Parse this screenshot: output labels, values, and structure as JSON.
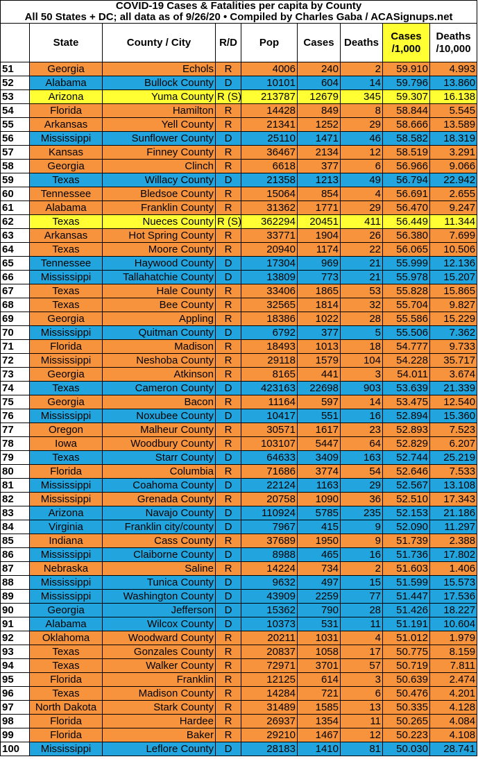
{
  "header": {
    "title": "COVID-19 Cases & Fatalities per capita by County",
    "subtitle": "All 50 States + DC; all data as of 9/26/20  • Compiled by Charles Gaba / ACASignups.net"
  },
  "table": {
    "columns": [
      "State",
      "County / City",
      "R/D",
      "Pop",
      "Cases",
      "Deaths",
      "Cases /1,000",
      "Deaths /10,000"
    ],
    "rows": [
      [
        "51",
        "Georgia",
        "Echols",
        "R",
        "4006",
        "240",
        "2",
        "59.910",
        "4.993"
      ],
      [
        "52",
        "Alabama",
        "Bullock County",
        "D",
        "10101",
        "604",
        "14",
        "59.796",
        "13.860"
      ],
      [
        "53",
        "Arizona",
        "Yuma County",
        "R (S)",
        "213787",
        "12679",
        "345",
        "59.307",
        "16.138"
      ],
      [
        "54",
        "Florida",
        "Hamilton",
        "R",
        "14428",
        "849",
        "8",
        "58.844",
        "5.545"
      ],
      [
        "55",
        "Arkansas",
        "Yell County",
        "R",
        "21341",
        "1252",
        "29",
        "58.666",
        "13.589"
      ],
      [
        "56",
        "Mississippi",
        "Sunflower County",
        "D",
        "25110",
        "1471",
        "46",
        "58.582",
        "18.319"
      ],
      [
        "57",
        "Kansas",
        "Finney County",
        "R",
        "36467",
        "2134",
        "12",
        "58.519",
        "3.291"
      ],
      [
        "58",
        "Georgia",
        "Clinch",
        "R",
        "6618",
        "377",
        "6",
        "56.966",
        "9.066"
      ],
      [
        "59",
        "Texas",
        "Willacy County",
        "D",
        "21358",
        "1213",
        "49",
        "56.794",
        "22.942"
      ],
      [
        "60",
        "Tennessee",
        "Bledsoe County",
        "R",
        "15064",
        "854",
        "4",
        "56.691",
        "2.655"
      ],
      [
        "61",
        "Alabama",
        "Franklin County",
        "R",
        "31362",
        "1771",
        "29",
        "56.470",
        "9.247"
      ],
      [
        "62",
        "Texas",
        "Nueces County",
        "R (S)",
        "362294",
        "20451",
        "411",
        "56.449",
        "11.344"
      ],
      [
        "63",
        "Arkansas",
        "Hot Spring County",
        "R",
        "33771",
        "1904",
        "26",
        "56.380",
        "7.699"
      ],
      [
        "64",
        "Texas",
        "Moore County",
        "R",
        "20940",
        "1174",
        "22",
        "56.065",
        "10.506"
      ],
      [
        "65",
        "Tennessee",
        "Haywood County",
        "D",
        "17304",
        "969",
        "21",
        "55.999",
        "12.136"
      ],
      [
        "66",
        "Mississippi",
        "Tallahatchie County",
        "D",
        "13809",
        "773",
        "21",
        "55.978",
        "15.207"
      ],
      [
        "67",
        "Texas",
        "Hale County",
        "R",
        "33406",
        "1865",
        "53",
        "55.828",
        "15.865"
      ],
      [
        "68",
        "Texas",
        "Bee County",
        "R",
        "32565",
        "1814",
        "32",
        "55.704",
        "9.827"
      ],
      [
        "69",
        "Georgia",
        "Appling",
        "R",
        "18386",
        "1022",
        "28",
        "55.586",
        "15.229"
      ],
      [
        "70",
        "Mississippi",
        "Quitman County",
        "D",
        "6792",
        "377",
        "5",
        "55.506",
        "7.362"
      ],
      [
        "71",
        "Florida",
        "Madison",
        "R",
        "18493",
        "1013",
        "18",
        "54.777",
        "9.733"
      ],
      [
        "72",
        "Mississippi",
        "Neshoba County",
        "R",
        "29118",
        "1579",
        "104",
        "54.228",
        "35.717"
      ],
      [
        "73",
        "Georgia",
        "Atkinson",
        "R",
        "8165",
        "441",
        "3",
        "54.011",
        "3.674"
      ],
      [
        "74",
        "Texas",
        "Cameron County",
        "D",
        "423163",
        "22698",
        "903",
        "53.639",
        "21.339"
      ],
      [
        "75",
        "Georgia",
        "Bacon",
        "R",
        "11164",
        "597",
        "14",
        "53.475",
        "12.540"
      ],
      [
        "76",
        "Mississippi",
        "Noxubee County",
        "D",
        "10417",
        "551",
        "16",
        "52.894",
        "15.360"
      ],
      [
        "77",
        "Oregon",
        "Malheur County",
        "R",
        "30571",
        "1617",
        "23",
        "52.893",
        "7.523"
      ],
      [
        "78",
        "Iowa",
        "Woodbury County",
        "R",
        "103107",
        "5447",
        "64",
        "52.829",
        "6.207"
      ],
      [
        "79",
        "Texas",
        "Starr County",
        "D",
        "64633",
        "3409",
        "163",
        "52.744",
        "25.219"
      ],
      [
        "80",
        "Florida",
        "Columbia",
        "R",
        "71686",
        "3774",
        "54",
        "52.646",
        "7.533"
      ],
      [
        "81",
        "Mississippi",
        "Coahoma County",
        "D",
        "22124",
        "1163",
        "29",
        "52.567",
        "13.108"
      ],
      [
        "82",
        "Mississippi",
        "Grenada County",
        "R",
        "20758",
        "1090",
        "36",
        "52.510",
        "17.343"
      ],
      [
        "83",
        "Arizona",
        "Navajo County",
        "D",
        "110924",
        "5785",
        "235",
        "52.153",
        "21.186"
      ],
      [
        "84",
        "Virginia",
        "Franklin city/county",
        "D",
        "7967",
        "415",
        "9",
        "52.090",
        "11.297"
      ],
      [
        "85",
        "Indiana",
        "Cass County",
        "R",
        "37689",
        "1950",
        "9",
        "51.739",
        "2.388"
      ],
      [
        "86",
        "Mississippi",
        "Claiborne County",
        "D",
        "8988",
        "465",
        "16",
        "51.736",
        "17.802"
      ],
      [
        "87",
        "Nebraska",
        "Saline",
        "R",
        "14224",
        "734",
        "2",
        "51.603",
        "1.406"
      ],
      [
        "88",
        "Mississippi",
        "Tunica County",
        "D",
        "9632",
        "497",
        "15",
        "51.599",
        "15.573"
      ],
      [
        "89",
        "Mississippi",
        "Washington County",
        "D",
        "43909",
        "2259",
        "77",
        "51.447",
        "17.536"
      ],
      [
        "90",
        "Georgia",
        "Jefferson",
        "D",
        "15362",
        "790",
        "28",
        "51.426",
        "18.227"
      ],
      [
        "91",
        "Alabama",
        "Wilcox County",
        "D",
        "10373",
        "531",
        "11",
        "51.191",
        "10.604"
      ],
      [
        "92",
        "Oklahoma",
        "Woodward County",
        "R",
        "20211",
        "1031",
        "4",
        "51.012",
        "1.979"
      ],
      [
        "93",
        "Texas",
        "Gonzales County",
        "R",
        "20837",
        "1058",
        "17",
        "50.775",
        "8.159"
      ],
      [
        "94",
        "Texas",
        "Walker County",
        "R",
        "72971",
        "3701",
        "57",
        "50.719",
        "7.811"
      ],
      [
        "95",
        "Florida",
        "Franklin",
        "R",
        "12125",
        "614",
        "3",
        "50.639",
        "2.474"
      ],
      [
        "96",
        "Texas",
        "Madison County",
        "R",
        "14284",
        "721",
        "6",
        "50.476",
        "4.201"
      ],
      [
        "97",
        "North Dakota",
        "Stark County",
        "R",
        "31489",
        "1585",
        "13",
        "50.335",
        "4.128"
      ],
      [
        "98",
        "Florida",
        "Hardee",
        "R",
        "26937",
        "1354",
        "11",
        "50.265",
        "4.084"
      ],
      [
        "99",
        "Florida",
        "Baker",
        "R",
        "29210",
        "1467",
        "12",
        "50.223",
        "4.108"
      ],
      [
        "100",
        "Mississippi",
        "Leflore County",
        "D",
        "28183",
        "1410",
        "81",
        "50.030",
        "28.741"
      ]
    ]
  }
}
